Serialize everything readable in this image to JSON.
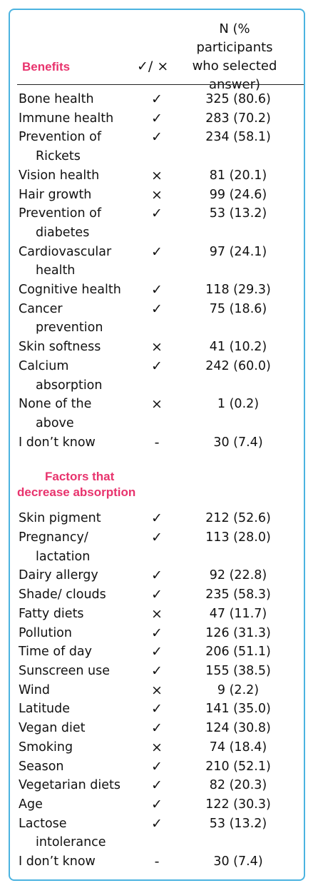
{
  "header": {
    "col1": "Benefits",
    "col2": "✓/ ×",
    "col3": "N (% participants\nwho selected\nanswer)"
  },
  "benefits": [
    {
      "label": [
        "Bone health"
      ],
      "mark": "✓",
      "value": "325 (80.6)"
    },
    {
      "label": [
        "Immune health"
      ],
      "mark": "✓",
      "value": "283 (70.2)"
    },
    {
      "label": [
        "Prevention of",
        "Rickets"
      ],
      "mark": "✓",
      "value": "234 (58.1)"
    },
    {
      "label": [
        "Vision health"
      ],
      "mark": "×",
      "value": "81 (20.1)"
    },
    {
      "label": [
        "Hair growth"
      ],
      "mark": "×",
      "value": "99 (24.6)"
    },
    {
      "label": [
        "Prevention of",
        "diabetes"
      ],
      "mark": "✓",
      "value": "53 (13.2)"
    },
    {
      "label": [
        "Cardiovascular",
        "health"
      ],
      "mark": "✓",
      "value": "97 (24.1)"
    },
    {
      "label": [
        "Cognitive health"
      ],
      "mark": "✓",
      "value": "118 (29.3)"
    },
    {
      "label": [
        "Cancer",
        "prevention"
      ],
      "mark": "✓",
      "value": "75 (18.6)"
    },
    {
      "label": [
        "Skin softness"
      ],
      "mark": "×",
      "value": "41 (10.2)"
    },
    {
      "label": [
        "Calcium",
        "absorption"
      ],
      "mark": "✓",
      "value": "242 (60.0)"
    },
    {
      "label": [
        "None of the",
        "above"
      ],
      "mark": "×",
      "value": "1 (0.2)"
    },
    {
      "label": [
        "I don’t know"
      ],
      "mark": "-",
      "value": "30 (7.4)"
    }
  ],
  "factors_title": [
    "Factors that",
    "decrease absorption"
  ],
  "factors": [
    {
      "label": [
        "Skin pigment"
      ],
      "mark": "✓",
      "value": "212 (52.6)"
    },
    {
      "label": [
        "Pregnancy/",
        "lactation"
      ],
      "mark": "✓",
      "value": "113 (28.0)"
    },
    {
      "label": [
        "Dairy allergy"
      ],
      "mark": "✓",
      "value": "92 (22.8)"
    },
    {
      "label": [
        "Shade/ clouds"
      ],
      "mark": "✓",
      "value": "235 (58.3)"
    },
    {
      "label": [
        "Fatty diets"
      ],
      "mark": "×",
      "value": "47 (11.7)"
    },
    {
      "label": [
        "Pollution"
      ],
      "mark": "✓",
      "value": "126 (31.3)"
    },
    {
      "label": [
        "Time of day"
      ],
      "mark": "✓",
      "value": "206 (51.1)"
    },
    {
      "label": [
        "Sunscreen use"
      ],
      "mark": "✓",
      "value": "155 (38.5)"
    },
    {
      "label": [
        "Wind"
      ],
      "mark": "×",
      "value": "9 (2.2)"
    },
    {
      "label": [
        "Latitude"
      ],
      "mark": "✓",
      "value": "141 (35.0)"
    },
    {
      "label": [
        "Vegan diet"
      ],
      "mark": "✓",
      "value": "124 (30.8)"
    },
    {
      "label": [
        "Smoking"
      ],
      "mark": "×",
      "value": "74 (18.4)"
    },
    {
      "label": [
        "Season"
      ],
      "mark": "✓",
      "value": "210 (52.1)"
    },
    {
      "label": [
        "Vegetarian diets"
      ],
      "mark": "✓",
      "value": "82 (20.3)"
    },
    {
      "label": [
        "Age"
      ],
      "mark": "✓",
      "value": "122 (30.3)"
    },
    {
      "label": [
        "Lactose",
        "intolerance"
      ],
      "mark": "✓",
      "value": "53 (13.2)"
    },
    {
      "label": [
        "I don’t know"
      ],
      "mark": "-",
      "value": "30 (7.4)"
    }
  ]
}
